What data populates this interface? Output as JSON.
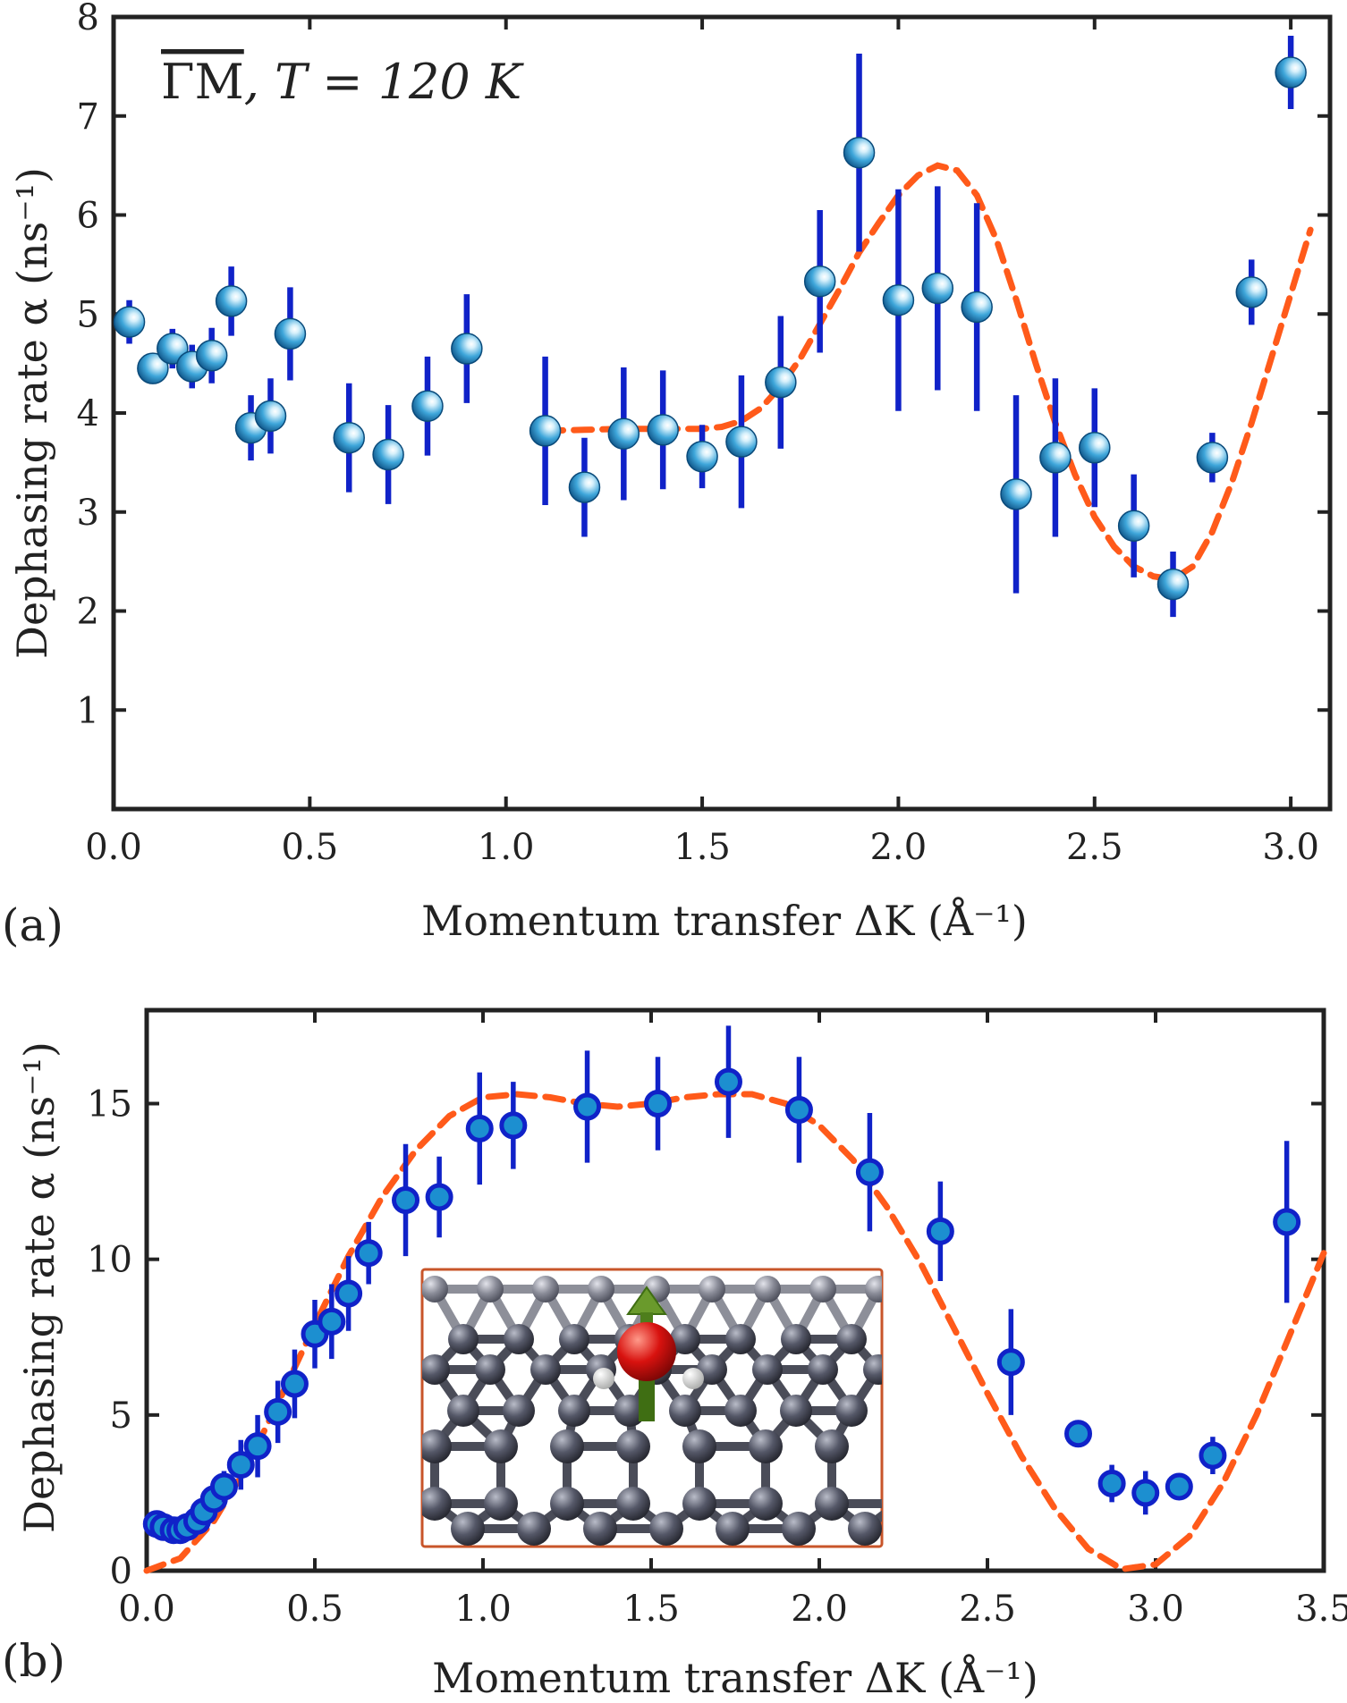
{
  "chart_data": [
    {
      "type": "scatter",
      "panel_label": "(a)",
      "title": "ΓM, T = 120 K",
      "title_direction": "ΓM",
      "title_condition": ", T = 120 K",
      "xlabel": "Momentum transfer ΔK (Å⁻¹)",
      "ylabel": "Dephasing rate α (ns⁻¹)",
      "xlim": [
        0,
        3.1
      ],
      "ylim": [
        0,
        8
      ],
      "x_ticks": [
        "0.0",
        "0.5",
        "1.0",
        "1.5",
        "2.0",
        "2.5",
        "3.0"
      ],
      "y_ticks": [
        "1",
        "2",
        "3",
        "4",
        "5",
        "6",
        "7",
        "8"
      ],
      "series": [
        {
          "name": "measured",
          "points": [
            {
              "x": 0.04,
              "y": 4.92,
              "err": 0.22
            },
            {
              "x": 0.1,
              "y": 4.45,
              "err": 0.1
            },
            {
              "x": 0.15,
              "y": 4.65,
              "err": 0.2
            },
            {
              "x": 0.2,
              "y": 4.47,
              "err": 0.22
            },
            {
              "x": 0.25,
              "y": 4.58,
              "err": 0.28
            },
            {
              "x": 0.3,
              "y": 5.13,
              "err": 0.35
            },
            {
              "x": 0.35,
              "y": 3.85,
              "err": 0.33
            },
            {
              "x": 0.4,
              "y": 3.97,
              "err": 0.38
            },
            {
              "x": 0.45,
              "y": 4.8,
              "err": 0.47
            },
            {
              "x": 0.6,
              "y": 3.75,
              "err": 0.55
            },
            {
              "x": 0.7,
              "y": 3.58,
              "err": 0.5
            },
            {
              "x": 0.8,
              "y": 4.07,
              "err": 0.5
            },
            {
              "x": 0.9,
              "y": 4.65,
              "err": 0.55
            },
            {
              "x": 1.1,
              "y": 3.82,
              "err": 0.75
            },
            {
              "x": 1.2,
              "y": 3.25,
              "err": 0.5
            },
            {
              "x": 1.3,
              "y": 3.79,
              "err": 0.67
            },
            {
              "x": 1.4,
              "y": 3.83,
              "err": 0.6
            },
            {
              "x": 1.5,
              "y": 3.56,
              "err": 0.32
            },
            {
              "x": 1.6,
              "y": 3.71,
              "err": 0.67
            },
            {
              "x": 1.7,
              "y": 4.31,
              "err": 0.67
            },
            {
              "x": 1.8,
              "y": 5.33,
              "err": 0.72
            },
            {
              "x": 1.9,
              "y": 6.63,
              "err": 1.0
            },
            {
              "x": 2.0,
              "y": 5.14,
              "err": 1.12
            },
            {
              "x": 2.1,
              "y": 5.26,
              "err": 1.03
            },
            {
              "x": 2.2,
              "y": 5.07,
              "err": 1.05
            },
            {
              "x": 2.3,
              "y": 3.18,
              "err": 1.0
            },
            {
              "x": 2.4,
              "y": 3.55,
              "err": 0.8
            },
            {
              "x": 2.5,
              "y": 3.65,
              "err": 0.6
            },
            {
              "x": 2.6,
              "y": 2.86,
              "err": 0.52
            },
            {
              "x": 2.7,
              "y": 2.27,
              "err": 0.33
            },
            {
              "x": 2.8,
              "y": 3.55,
              "err": 0.25
            },
            {
              "x": 2.9,
              "y": 5.22,
              "err": 0.33
            },
            {
              "x": 3.0,
              "y": 7.44,
              "err": 0.37
            }
          ]
        },
        {
          "name": "fit",
          "points": [
            {
              "x": 1.1,
              "y": 3.82
            },
            {
              "x": 1.2,
              "y": 3.83
            },
            {
              "x": 1.3,
              "y": 3.84
            },
            {
              "x": 1.4,
              "y": 3.84
            },
            {
              "x": 1.5,
              "y": 3.84
            },
            {
              "x": 1.55,
              "y": 3.86
            },
            {
              "x": 1.6,
              "y": 3.92
            },
            {
              "x": 1.65,
              "y": 4.05
            },
            {
              "x": 1.7,
              "y": 4.27
            },
            {
              "x": 1.75,
              "y": 4.55
            },
            {
              "x": 1.8,
              "y": 4.9
            },
            {
              "x": 1.85,
              "y": 5.25
            },
            {
              "x": 1.9,
              "y": 5.62
            },
            {
              "x": 1.95,
              "y": 5.92
            },
            {
              "x": 2.0,
              "y": 6.2
            },
            {
              "x": 2.05,
              "y": 6.4
            },
            {
              "x": 2.1,
              "y": 6.5
            },
            {
              "x": 2.15,
              "y": 6.45
            },
            {
              "x": 2.2,
              "y": 6.2
            },
            {
              "x": 2.25,
              "y": 5.75
            },
            {
              "x": 2.3,
              "y": 5.15
            },
            {
              "x": 2.35,
              "y": 4.5
            },
            {
              "x": 2.4,
              "y": 3.9
            },
            {
              "x": 2.45,
              "y": 3.38
            },
            {
              "x": 2.5,
              "y": 2.95
            },
            {
              "x": 2.55,
              "y": 2.65
            },
            {
              "x": 2.6,
              "y": 2.45
            },
            {
              "x": 2.65,
              "y": 2.35
            },
            {
              "x": 2.7,
              "y": 2.32
            },
            {
              "x": 2.75,
              "y": 2.45
            },
            {
              "x": 2.8,
              "y": 2.8
            },
            {
              "x": 2.85,
              "y": 3.3
            },
            {
              "x": 2.9,
              "y": 3.9
            },
            {
              "x": 2.95,
              "y": 4.55
            },
            {
              "x": 3.0,
              "y": 5.2
            },
            {
              "x": 3.05,
              "y": 5.85
            }
          ]
        }
      ]
    },
    {
      "type": "scatter",
      "panel_label": "(b)",
      "xlabel": "Momentum transfer ΔK (Å⁻¹)",
      "ylabel": "Dephasing rate α (ns⁻¹)",
      "xlim": [
        0,
        3.5
      ],
      "ylim": [
        0,
        18
      ],
      "x_ticks": [
        "0.0",
        "0.5",
        "1.0",
        "1.5",
        "2.0",
        "2.5",
        "3.0",
        "3.5"
      ],
      "y_ticks": [
        "0",
        "5",
        "10",
        "15"
      ],
      "series": [
        {
          "name": "measured",
          "points": [
            {
              "x": 0.03,
              "y": 1.5,
              "err": 0.2
            },
            {
              "x": 0.05,
              "y": 1.4,
              "err": 0.2
            },
            {
              "x": 0.08,
              "y": 1.3,
              "err": 0.2
            },
            {
              "x": 0.1,
              "y": 1.3,
              "err": 0.2
            },
            {
              "x": 0.12,
              "y": 1.4,
              "err": 0.2
            },
            {
              "x": 0.15,
              "y": 1.6,
              "err": 0.3
            },
            {
              "x": 0.17,
              "y": 1.9,
              "err": 0.3
            },
            {
              "x": 0.2,
              "y": 2.3,
              "err": 0.4
            },
            {
              "x": 0.23,
              "y": 2.7,
              "err": 0.5
            },
            {
              "x": 0.28,
              "y": 3.4,
              "err": 0.8
            },
            {
              "x": 0.33,
              "y": 4.0,
              "err": 1.0
            },
            {
              "x": 0.39,
              "y": 5.1,
              "err": 1.0
            },
            {
              "x": 0.44,
              "y": 6.0,
              "err": 1.1
            },
            {
              "x": 0.5,
              "y": 7.6,
              "err": 1.1
            },
            {
              "x": 0.55,
              "y": 8.0,
              "err": 1.2
            },
            {
              "x": 0.6,
              "y": 8.9,
              "err": 1.2
            },
            {
              "x": 0.66,
              "y": 10.2,
              "err": 1.0
            },
            {
              "x": 0.77,
              "y": 11.9,
              "err": 1.8
            },
            {
              "x": 0.87,
              "y": 12.0,
              "err": 1.3
            },
            {
              "x": 0.99,
              "y": 14.2,
              "err": 1.8
            },
            {
              "x": 1.09,
              "y": 14.3,
              "err": 1.4
            },
            {
              "x": 1.31,
              "y": 14.9,
              "err": 1.8
            },
            {
              "x": 1.52,
              "y": 15.0,
              "err": 1.5
            },
            {
              "x": 1.73,
              "y": 15.7,
              "err": 1.8
            },
            {
              "x": 1.94,
              "y": 14.8,
              "err": 1.7
            },
            {
              "x": 2.15,
              "y": 12.8,
              "err": 1.9
            },
            {
              "x": 2.36,
              "y": 10.9,
              "err": 1.6
            },
            {
              "x": 2.57,
              "y": 6.7,
              "err": 1.7
            },
            {
              "x": 2.77,
              "y": 4.4,
              "err": 0.3
            },
            {
              "x": 2.87,
              "y": 2.8,
              "err": 0.6
            },
            {
              "x": 2.97,
              "y": 2.5,
              "err": 0.7
            },
            {
              "x": 3.07,
              "y": 2.7,
              "err": 0.4
            },
            {
              "x": 3.17,
              "y": 3.7,
              "err": 0.6
            },
            {
              "x": 3.39,
              "y": 11.2,
              "err": 2.6
            }
          ]
        },
        {
          "name": "fit",
          "points": [
            {
              "x": 0.0,
              "y": 0.0
            },
            {
              "x": 0.1,
              "y": 0.4
            },
            {
              "x": 0.2,
              "y": 1.6
            },
            {
              "x": 0.3,
              "y": 3.4
            },
            {
              "x": 0.4,
              "y": 5.6
            },
            {
              "x": 0.5,
              "y": 7.9
            },
            {
              "x": 0.6,
              "y": 10.1
            },
            {
              "x": 0.7,
              "y": 12.0
            },
            {
              "x": 0.8,
              "y": 13.5
            },
            {
              "x": 0.9,
              "y": 14.6
            },
            {
              "x": 1.0,
              "y": 15.2
            },
            {
              "x": 1.1,
              "y": 15.3
            },
            {
              "x": 1.2,
              "y": 15.2
            },
            {
              "x": 1.3,
              "y": 15.0
            },
            {
              "x": 1.4,
              "y": 14.9
            },
            {
              "x": 1.5,
              "y": 15.0
            },
            {
              "x": 1.6,
              "y": 15.2
            },
            {
              "x": 1.7,
              "y": 15.3
            },
            {
              "x": 1.8,
              "y": 15.3
            },
            {
              "x": 1.9,
              "y": 15.0
            },
            {
              "x": 2.0,
              "y": 14.3
            },
            {
              "x": 2.1,
              "y": 13.2
            },
            {
              "x": 2.2,
              "y": 11.7
            },
            {
              "x": 2.3,
              "y": 9.9
            },
            {
              "x": 2.4,
              "y": 7.8
            },
            {
              "x": 2.5,
              "y": 5.7
            },
            {
              "x": 2.6,
              "y": 3.7
            },
            {
              "x": 2.7,
              "y": 2.0
            },
            {
              "x": 2.8,
              "y": 0.7
            },
            {
              "x": 2.9,
              "y": 0.05
            },
            {
              "x": 3.0,
              "y": 0.2
            },
            {
              "x": 3.1,
              "y": 1.1
            },
            {
              "x": 3.2,
              "y": 2.8
            },
            {
              "x": 3.3,
              "y": 5.0
            },
            {
              "x": 3.4,
              "y": 7.6
            },
            {
              "x": 3.5,
              "y": 10.2
            }
          ]
        }
      ],
      "inset": "graphene lattice with adsorbed water molecule"
    }
  ]
}
